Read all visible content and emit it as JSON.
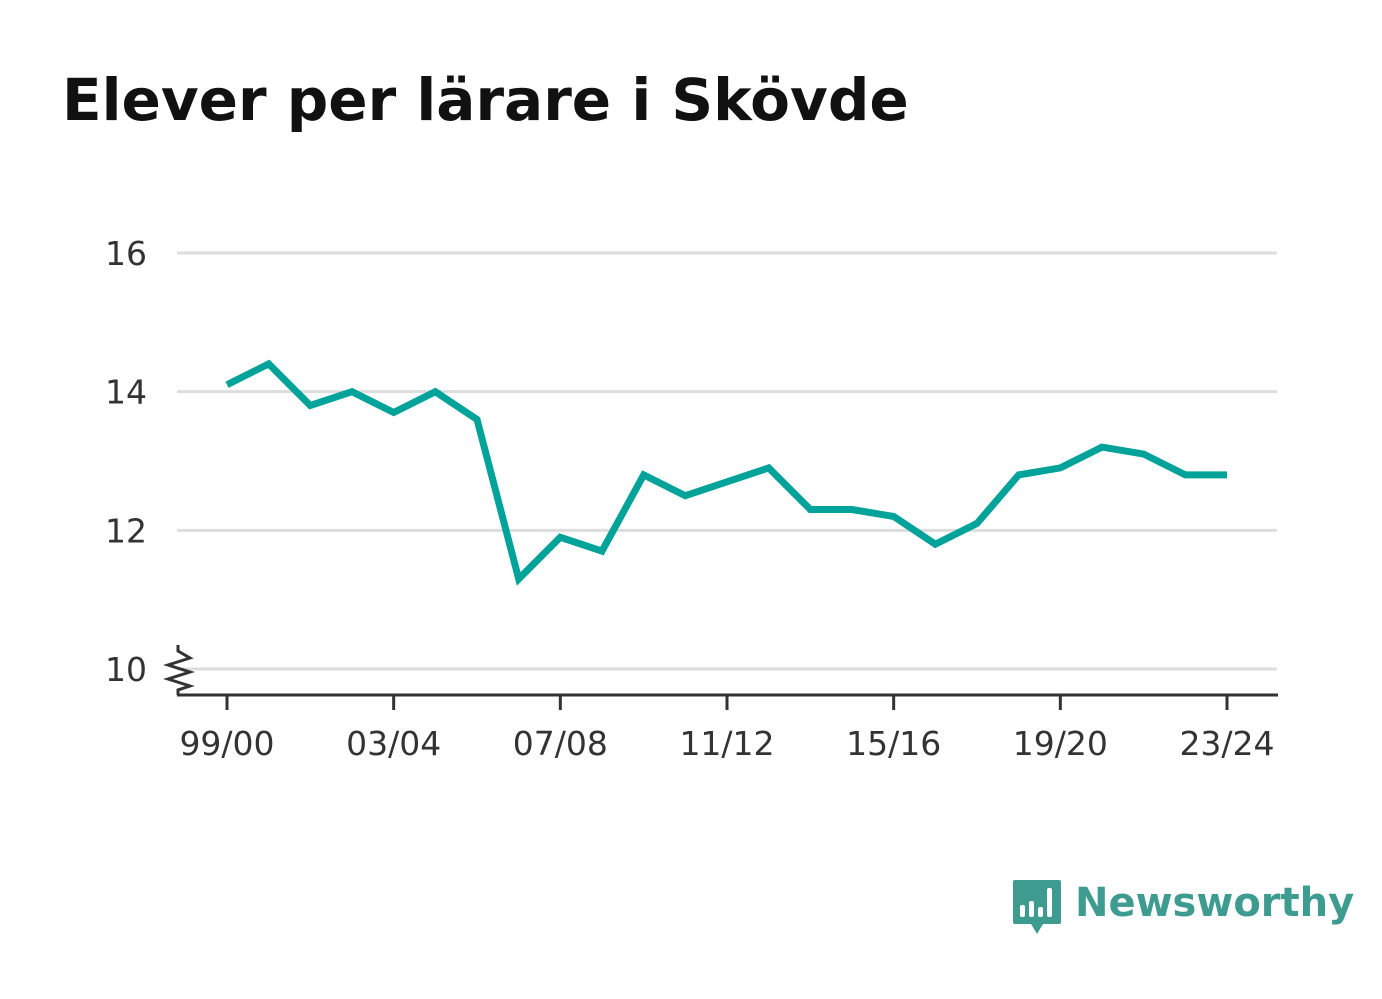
{
  "colors": {
    "line": "#00a399",
    "grid": "#dddddd",
    "axis": "#333333",
    "title": "#111111",
    "brand": "#3d9b90"
  },
  "chart_data": {
    "type": "line",
    "title": "Elever per lärare i Skövde",
    "xlabel": "",
    "ylabel": "",
    "ylim": [
      10,
      16
    ],
    "yticks": [
      "10",
      "12",
      "14",
      "16"
    ],
    "axis_break": true,
    "grid": true,
    "x": [
      "99/00",
      "00/01",
      "01/02",
      "02/03",
      "03/04",
      "04/05",
      "05/06",
      "06/07",
      "07/08",
      "08/09",
      "09/10",
      "10/11",
      "11/12",
      "12/13",
      "13/14",
      "14/15",
      "15/16",
      "16/17",
      "17/18",
      "18/19",
      "19/20",
      "20/21",
      "21/22",
      "22/23",
      "23/24"
    ],
    "xticks": [
      "99/00",
      "03/04",
      "07/08",
      "11/12",
      "15/16",
      "19/20",
      "23/24"
    ],
    "series": [
      {
        "values": [
          14.1,
          14.4,
          13.8,
          14.0,
          13.7,
          14.0,
          13.6,
          11.3,
          11.9,
          11.7,
          12.8,
          12.5,
          12.7,
          12.9,
          12.3,
          12.3,
          12.2,
          11.8,
          12.1,
          12.8,
          12.9,
          13.2,
          13.1,
          12.8,
          12.8
        ]
      }
    ]
  },
  "brand": {
    "name": "Newsworthy",
    "icon": "bar-chart-speech-bubble-icon"
  }
}
